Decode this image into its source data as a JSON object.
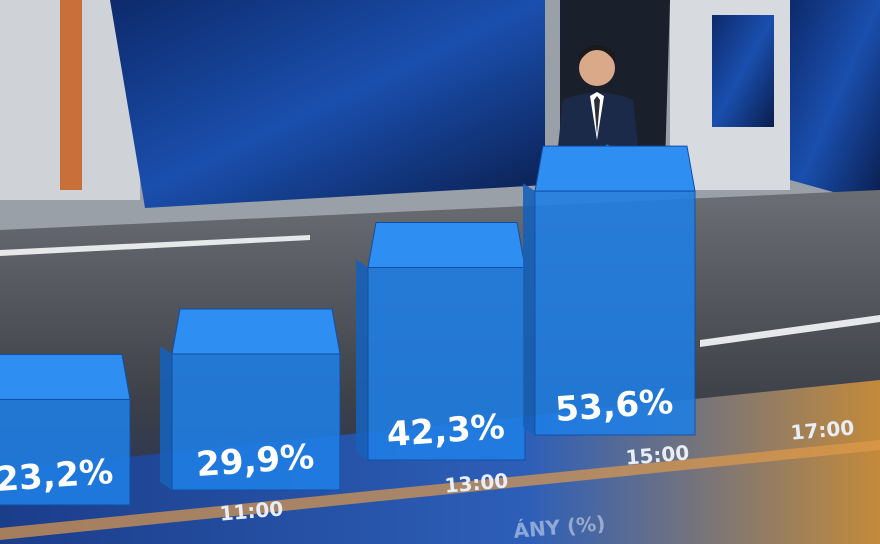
{
  "chart_data": {
    "type": "bar3d",
    "xlabel": "ÁNY (%)",
    "categories": [
      null,
      "11:00",
      "13:00",
      "15:00",
      "17:00"
    ],
    "values": [
      23.2,
      29.9,
      42.3,
      53.6,
      null
    ],
    "value_labels": [
      "23,2%",
      "29,9%",
      "42,3%",
      "53,6%",
      null
    ],
    "color": "#1f7fe6"
  }
}
